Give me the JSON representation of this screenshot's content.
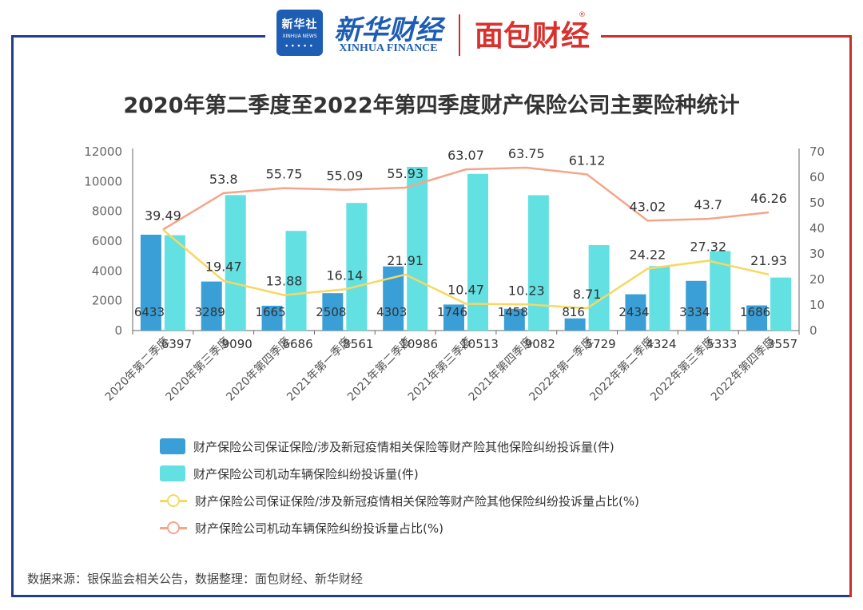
{
  "logos": {
    "xinhua_badge": "新华社",
    "xinhua_badge_en": "XINHUA NEWS",
    "xinhua_finance_cn": "新华财经",
    "xinhua_finance_en": "XINHUA FINANCE",
    "mianbao": "面包财经",
    "reg": "®"
  },
  "footer": {
    "source": "数据来源：银保监会相关公告，数据整理：面包财经、新华财经"
  },
  "colors": {
    "bar1": "#3a9fd6",
    "bar2": "#62e0e2",
    "line1": "#f6d862",
    "line2": "#f5a58a",
    "axis": "#666666"
  },
  "chart_data": {
    "type": "bar",
    "title": "2020年第二季度至2022年第四季度财产保险公司主要险种统计",
    "categories": [
      "2020年第二季度",
      "2020年第三季度",
      "2020年第四季度",
      "2021年第一季度",
      "2021年第二季度",
      "2021年第三季度",
      "2021年第四季度",
      "2022年第一季度",
      "2022年第二季度",
      "2022年第三季度",
      "2022年第四季度"
    ],
    "y_left": {
      "range": [
        0,
        12000
      ],
      "ticks": [
        0,
        2000,
        4000,
        6000,
        8000,
        10000,
        12000
      ]
    },
    "y_right": {
      "range": [
        0,
        70
      ],
      "ticks": [
        0,
        10,
        20,
        30,
        40,
        50,
        60,
        70
      ]
    },
    "series": [
      {
        "name": "财产保险公司保证保险/涉及新冠疫情相关保险等财产险其他保险纠纷投诉量(件)",
        "type": "bar",
        "axis": "left",
        "values": [
          6433,
          3289,
          1665,
          2508,
          4303,
          1746,
          1458,
          816,
          2434,
          3334,
          1686
        ]
      },
      {
        "name": "财产保险公司机动车辆保险纠纷投诉量(件)",
        "type": "bar",
        "axis": "left",
        "values": [
          6397,
          9090,
          6686,
          8561,
          10986,
          10513,
          9082,
          5729,
          4324,
          5333,
          3557
        ]
      },
      {
        "name": "财产保险公司保证保险/涉及新冠疫情相关保险等财产险其他保险纠纷投诉量占比(%)",
        "type": "line",
        "axis": "right",
        "values": [
          39.49,
          19.47,
          13.88,
          16.14,
          21.91,
          10.47,
          10.23,
          8.71,
          24.22,
          27.32,
          21.93
        ]
      },
      {
        "name": "财产保险公司机动车辆保险纠纷投诉量占比(%)",
        "type": "line",
        "axis": "right",
        "values": [
          39.49,
          53.8,
          55.75,
          55.09,
          55.93,
          63.07,
          63.75,
          61.12,
          43.02,
          43.7,
          46.26
        ]
      }
    ],
    "line_labels": {
      "line1": [
        "",
        "19.47",
        "13.88",
        "16.14",
        "21.91",
        "10.47",
        "10.23",
        "8.71",
        "24.22",
        "27.32",
        "21.93"
      ],
      "line2": [
        "39.49",
        "53.8",
        "55.75",
        "55.09",
        "55.93",
        "63.07",
        "63.75",
        "61.12",
        "43.02",
        "43.7",
        "46.26"
      ]
    },
    "legend_position": "bottom"
  }
}
